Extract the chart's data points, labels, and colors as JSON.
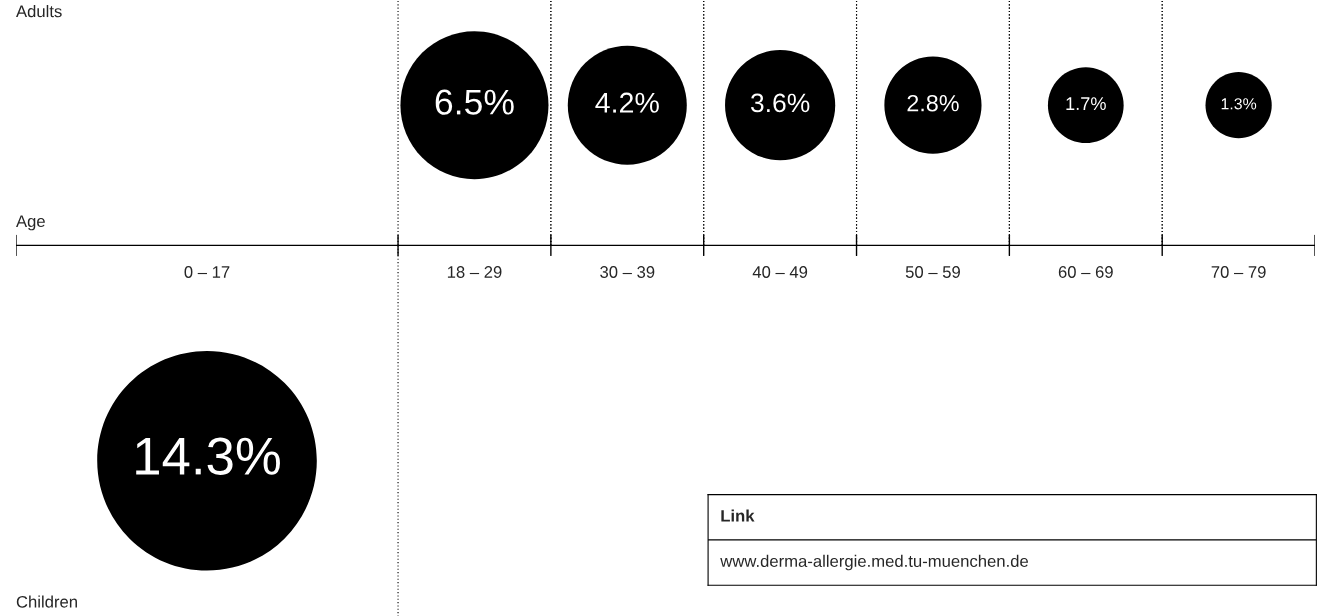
{
  "chart_data": {
    "type": "other",
    "xlabel": "Age",
    "categories": [
      "0 – 17",
      "18 – 29",
      "30 – 39",
      "40 – 49",
      "50 – 59",
      "60 – 69",
      "70 – 79"
    ],
    "series": [
      {
        "color": "#000000",
        "values": [
          null,
          6.5,
          4.2,
          3.6,
          2.8,
          1.7,
          1.3
        ],
        "value_labels": [
          null,
          "6.5%",
          "4.2%",
          "3.6%",
          "2.8%",
          "1.7%",
          "1.3%"
        ]
      },
      {
        "color": "#000000",
        "values": [
          14.3,
          null,
          null,
          null,
          null,
          null,
          null
        ],
        "value_labels": [
          "14.3%",
          null,
          null,
          null,
          null,
          null,
          null
        ]
      }
    ],
    "annotations": [
      "Adults",
      "Children",
      "Link",
      "www.derma-allergie.med.tu-muenchen.de"
    ]
  }
}
